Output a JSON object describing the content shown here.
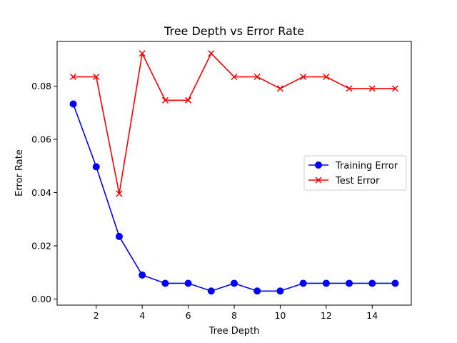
{
  "chart_data": {
    "type": "line",
    "title": "Tree Depth vs Error Rate",
    "xlabel": "Tree Depth",
    "ylabel": "Error Rate",
    "x": [
      1,
      2,
      3,
      4,
      5,
      6,
      7,
      8,
      9,
      10,
      11,
      12,
      13,
      14,
      15
    ],
    "xlim": [
      0.3,
      15.7
    ],
    "ylim": [
      -0.0023,
      0.0968
    ],
    "xticks": [
      2,
      4,
      6,
      8,
      10,
      12,
      14
    ],
    "xtick_labels": [
      "2",
      "4",
      "6",
      "8",
      "10",
      "12",
      "14"
    ],
    "yticks": [
      0.0,
      0.02,
      0.04,
      0.06,
      0.08
    ],
    "ytick_labels": [
      "0.00",
      "0.02",
      "0.04",
      "0.06",
      "0.08"
    ],
    "grid": false,
    "legend_position": "center-right",
    "series": [
      {
        "name": "Training Error",
        "color": "#0000ff",
        "marker": "circle",
        "values": [
          0.0733,
          0.0497,
          0.0235,
          0.009,
          0.0059,
          0.0059,
          0.003,
          0.0059,
          0.003,
          0.003,
          0.0059,
          0.0059,
          0.0059,
          0.0059,
          0.0059
        ]
      },
      {
        "name": "Test Error",
        "color": "#ff0000",
        "marker": "x",
        "values": [
          0.0835,
          0.0835,
          0.0396,
          0.0923,
          0.0747,
          0.0747,
          0.0923,
          0.0835,
          0.0835,
          0.0791,
          0.0835,
          0.0835,
          0.0791,
          0.0791,
          0.0791
        ]
      }
    ]
  }
}
